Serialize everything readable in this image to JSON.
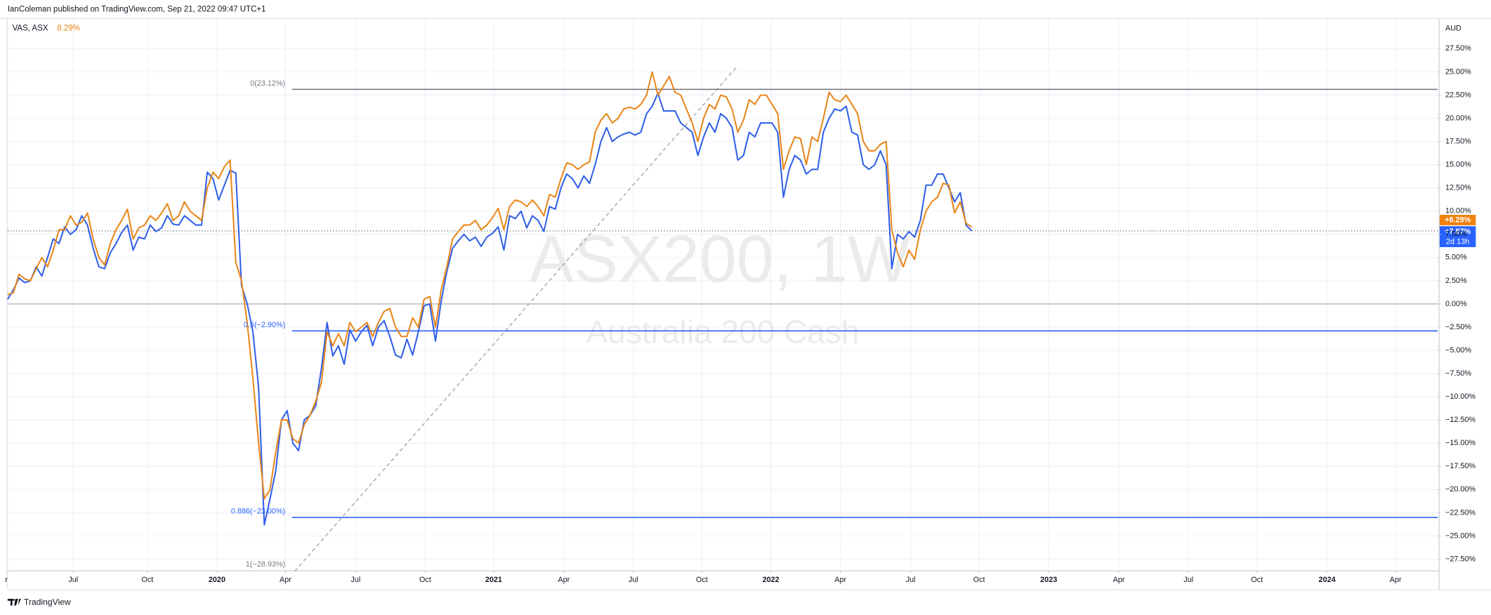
{
  "header": "IanColeman published on TradingView.com, Sep 21, 2022 09:47 UTC+1",
  "legend_value": "8.29%",
  "currency": "AUD",
  "watermark_subtitle": "Australia 200 Cash",
  "logo": "TradingView",
  "last_tags": [
    "+8.29%",
    "+7.87%",
    "2d 13h"
  ],
  "chart_data": {
    "type": "line",
    "xlim": [
      0,
      250.7
    ],
    "xticks": [
      {
        "value": 0,
        "label": "r"
      },
      {
        "value": 11.5,
        "label": "Jul"
      },
      {
        "value": 24.5,
        "label": "Oct"
      },
      {
        "value": 36.7,
        "label": "2020"
      },
      {
        "value": 48.7,
        "label": "Apr"
      },
      {
        "value": 61,
        "label": "Jul"
      },
      {
        "value": 73.2,
        "label": "Oct"
      },
      {
        "value": 85.2,
        "label": "2021"
      },
      {
        "value": 97.5,
        "label": "Apr"
      },
      {
        "value": 109.7,
        "label": "Jul"
      },
      {
        "value": 121.7,
        "label": "Oct"
      },
      {
        "value": 133.8,
        "label": "2022"
      },
      {
        "value": 146,
        "label": "Apr"
      },
      {
        "value": 158.3,
        "label": "Jul"
      },
      {
        "value": 170.3,
        "label": "Oct"
      },
      {
        "value": 182.5,
        "label": "2023"
      },
      {
        "value": 194.8,
        "label": "Apr"
      },
      {
        "value": 207,
        "label": "Jul"
      },
      {
        "value": 219,
        "label": "Oct"
      },
      {
        "value": 231.3,
        "label": "2024"
      },
      {
        "value": 243.3,
        "label": "Apr"
      }
    ],
    "ylim": [
      -28.7,
      30.7
    ],
    "yticks": [
      {
        "value": 27.5,
        "label": "27.50%"
      },
      {
        "value": 25,
        "label": "25.00%"
      },
      {
        "value": 22.5,
        "label": "22.50%"
      },
      {
        "value": 20,
        "label": "20.00%"
      },
      {
        "value": 17.5,
        "label": "17.50%"
      },
      {
        "value": 15,
        "label": "15.00%"
      },
      {
        "value": 12.5,
        "label": "12.50%"
      },
      {
        "value": 10,
        "label": "10.00%"
      },
      {
        "value": 7.5,
        "label": "7.50%"
      },
      {
        "value": 5,
        "label": "5.00%"
      },
      {
        "value": 2.5,
        "label": "2.50%"
      },
      {
        "value": 0,
        "label": "0.00%"
      },
      {
        "value": -2.5,
        "label": "−2.50%"
      },
      {
        "value": -5,
        "label": "−5.00%"
      },
      {
        "value": -7.5,
        "label": "−7.50%"
      },
      {
        "value": -10,
        "label": "−10.00%"
      },
      {
        "value": -12.5,
        "label": "−12.50%"
      },
      {
        "value": -15,
        "label": "−15.00%"
      },
      {
        "value": -17.5,
        "label": "−17.50%"
      },
      {
        "value": -20,
        "label": "−20.00%"
      },
      {
        "value": -22.5,
        "label": "−22.50%"
      },
      {
        "value": -25,
        "label": "−25.00%"
      },
      {
        "value": -27.5,
        "label": "−27.50%"
      }
    ],
    "grid": true,
    "fib_levels": [
      {
        "label": "0(23.12%)",
        "value": 23.12,
        "color": "#787b86"
      },
      {
        "label": "0.5(−2.90%)",
        "value": -2.9,
        "color": "#2962ff"
      },
      {
        "label": "0.886(−23.00%)",
        "value": -23.0,
        "color": "#2962ff"
      },
      {
        "label": "1(−28.93%)",
        "value": -28.93,
        "color": "#787b86"
      }
    ],
    "series": [
      {
        "name": "ASX200, 1W",
        "color": "#2f5fe8",
        "values": [
          0.5,
          1.5,
          2.8,
          2.3,
          2.5,
          4,
          3,
          5,
          7,
          6.5,
          8.3,
          7.5,
          8,
          9.5,
          8.5,
          6,
          4,
          3.8,
          5.5,
          6.5,
          7.7,
          8.5,
          5.8,
          7.2,
          7,
          8.5,
          7.8,
          8.2,
          9.5,
          8.6,
          8.5,
          9.5,
          9,
          8.5,
          8.5,
          14.2,
          13.5,
          11.2,
          12.8,
          14.4,
          14.1,
          2,
          0,
          -3,
          -9,
          -23.8,
          -21,
          -18,
          -12.5,
          -11.5,
          -15,
          -15.8,
          -12.5,
          -12,
          -11,
          -7,
          -2,
          -5.6,
          -4.5,
          -6.5,
          -2.8,
          -4,
          -3,
          -2.3,
          -4.5,
          -2.5,
          -1.8,
          -3.5,
          -5.5,
          -5.8,
          -3.8,
          -5.5,
          -3,
          -0.2,
          0,
          -4,
          0.3,
          3.5,
          6,
          6.8,
          7.5,
          6.8,
          7.2,
          6.2,
          7.2,
          7.6,
          8.3,
          5.8,
          9.5,
          9.2,
          10,
          8.2,
          9.5,
          9,
          7.8,
          10.5,
          10.2,
          12.5,
          14,
          13.5,
          12.5,
          13.8,
          13,
          15,
          17.5,
          19,
          17.5,
          18,
          18.3,
          18.5,
          18.2,
          18.5,
          20.5,
          21.3,
          22.7,
          20.8,
          20.8,
          20.8,
          19.5,
          19,
          18.5,
          16,
          18,
          19.5,
          18.5,
          20.5,
          20,
          19,
          15.5,
          16,
          18.5,
          18,
          19.5,
          19.5,
          19.5,
          18.5,
          11.5,
          14.5,
          16,
          15.5,
          14,
          14.5,
          14.5,
          18.5,
          20,
          21,
          20.8,
          21.3,
          18.5,
          18.2,
          15,
          14.5,
          15,
          16.5,
          15,
          3.8,
          7.5,
          7,
          7.8,
          7.2,
          9,
          12.8,
          12.8,
          14,
          14,
          12.5,
          11,
          12,
          8.5,
          7.87
        ]
      },
      {
        "name": "VAS, ASX",
        "color": "#e8861a",
        "values": [
          1,
          1.2,
          3.2,
          2.7,
          2.5,
          3.8,
          5,
          4,
          5.8,
          8,
          8,
          9.5,
          8.5,
          8.8,
          9.8,
          7,
          5,
          4.2,
          6.5,
          8,
          9,
          10.2,
          7,
          8.2,
          8.5,
          9.5,
          9,
          9.8,
          10.8,
          9,
          9.5,
          11,
          10,
          9.5,
          9,
          12.5,
          14.2,
          13.5,
          14.8,
          15.5,
          4.5,
          2.5,
          -2,
          -8,
          -15,
          -21,
          -20,
          -16,
          -12.5,
          -12.5,
          -14.5,
          -15,
          -13,
          -12,
          -10.5,
          -8.5,
          -3,
          -4.5,
          -3.2,
          -4.5,
          -2,
          -3,
          -2.5,
          -2,
          -3.5,
          -2,
          -0.8,
          -0.5,
          -2.5,
          -3.5,
          -3.5,
          -1.5,
          -2.5,
          0.5,
          0.8,
          -2.5,
          1.5,
          4,
          7,
          7.8,
          8.5,
          8.5,
          9,
          8,
          8.5,
          9.3,
          10.3,
          8,
          10.5,
          11.2,
          11,
          10.5,
          11.2,
          10.5,
          9.5,
          11.8,
          11.5,
          13.5,
          15.2,
          15,
          14.5,
          15,
          15.3,
          18.5,
          19.8,
          20.5,
          19.5,
          20,
          21,
          21.2,
          21,
          21.5,
          22.5,
          25,
          22.5,
          23.5,
          24.5,
          22.8,
          22.5,
          21,
          19.5,
          17.5,
          20,
          21.5,
          21,
          22.5,
          22.3,
          21,
          18.5,
          19.8,
          22,
          21.5,
          22.5,
          22.5,
          21.5,
          20.5,
          14.5,
          16.5,
          18,
          17.8,
          15,
          18,
          17.5,
          20,
          22.8,
          22,
          21.8,
          22.5,
          21.5,
          20.5,
          17.5,
          16.5,
          16.5,
          17.2,
          17.5,
          8,
          5.5,
          4,
          5.8,
          4.8,
          8,
          10,
          11,
          11.5,
          13,
          12.8,
          9.8,
          11,
          8.7,
          8.29
        ]
      }
    ]
  }
}
